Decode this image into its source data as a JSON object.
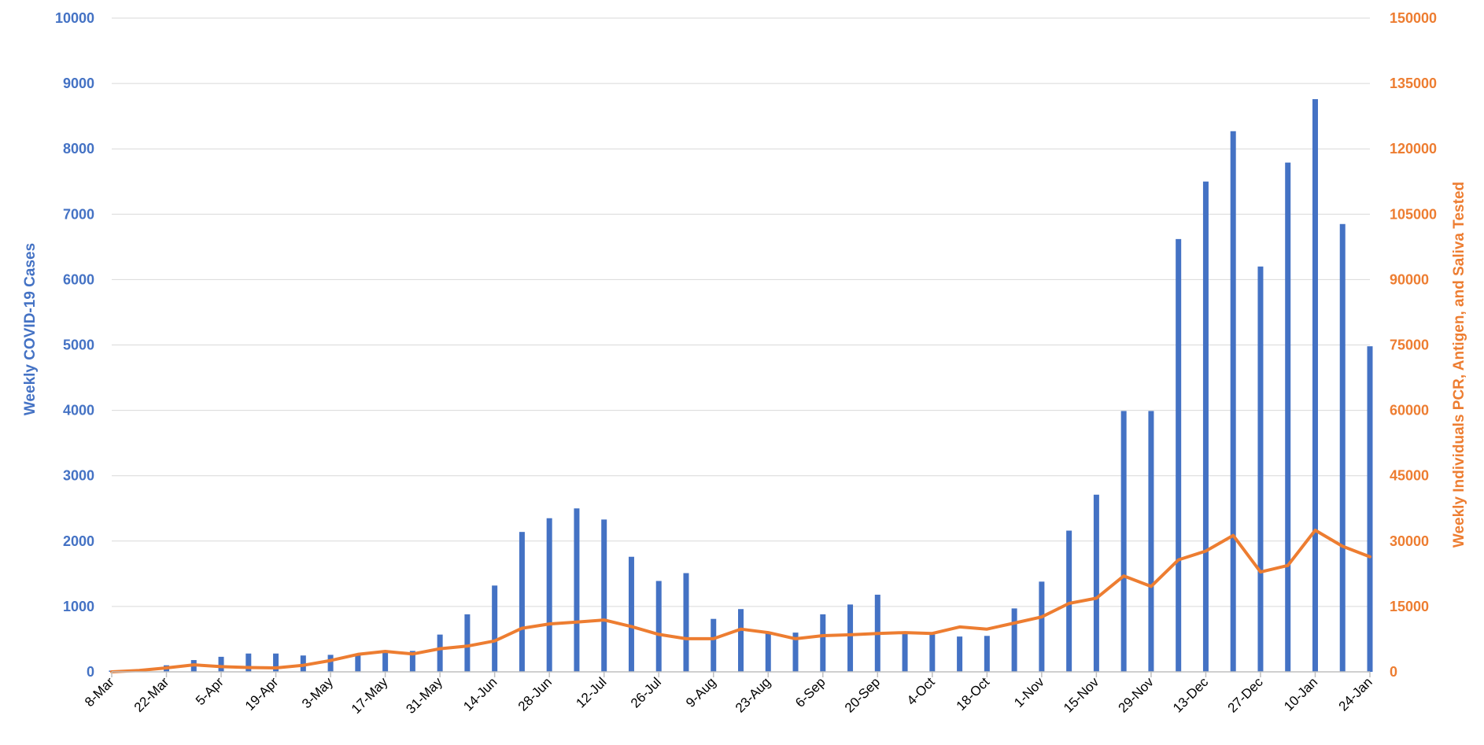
{
  "chart_data": {
    "type": "bar",
    "ylabel": "Weekly COVID-19 Cases",
    "y2label": "Weekly Individuals PCR, Antigen, and Saliva Tested",
    "ylim": [
      0,
      10000
    ],
    "y2lim": [
      0,
      150000
    ],
    "yticks": [
      "0",
      "1000",
      "2000",
      "3000",
      "4000",
      "5000",
      "6000",
      "7000",
      "8000",
      "9000",
      "10000"
    ],
    "y2ticks": [
      "0",
      "15000",
      "30000",
      "45000",
      "60000",
      "75000",
      "90000",
      "105000",
      "120000",
      "135000",
      "150000"
    ],
    "xtick_labels": [
      "8-Mar",
      "22-Mar",
      "5-Apr",
      "19-Apr",
      "3-May",
      "17-May",
      "31-May",
      "14-Jun",
      "28-Jun",
      "12-Jul",
      "26-Jul",
      "9-Aug",
      "23-Aug",
      "6-Sep",
      "20-Sep",
      "4-Oct",
      "18-Oct",
      "1-Nov",
      "15-Nov",
      "29-Nov",
      "13-Dec",
      "27-Dec",
      "10-Jan",
      "24-Jan"
    ],
    "grid": true,
    "colors": {
      "cases": "#4472c4",
      "tested": "#ed7d31",
      "grid": "#d9d9d9",
      "axis": "#bfbfbf"
    },
    "series": [
      {
        "type": "bar",
        "axis": "left",
        "values": [
          20,
          40,
          100,
          180,
          230,
          280,
          280,
          250,
          260,
          280,
          300,
          320,
          570,
          880,
          1320,
          2140,
          2350,
          2500,
          2330,
          1760,
          1390,
          1510,
          810,
          960,
          590,
          600,
          880,
          1030,
          1180,
          610,
          570,
          540,
          550,
          970,
          1380,
          2160,
          2710,
          3990,
          3990,
          6620,
          7500,
          8270,
          6200,
          7790,
          8760,
          6850,
          4980
        ]
      },
      {
        "type": "line",
        "axis": "right",
        "values": [
          0,
          300,
          900,
          1600,
          1200,
          1000,
          900,
          1500,
          2600,
          4000,
          4700,
          4100,
          5300,
          5900,
          7100,
          10000,
          11000,
          11400,
          11900,
          10400,
          8600,
          7600,
          7600,
          9800,
          9000,
          7600,
          8300,
          8500,
          8800,
          9000,
          8800,
          10300,
          9800,
          11200,
          12600,
          15700,
          16900,
          22000,
          19600,
          25700,
          27700,
          31300,
          22900,
          24400,
          32500,
          28800,
          26400
        ]
      }
    ]
  }
}
